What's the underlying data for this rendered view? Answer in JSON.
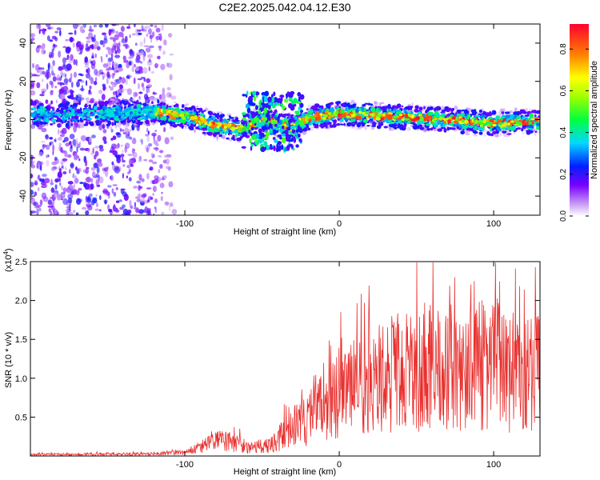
{
  "title": "C2E2.2025.042.04.12.E30",
  "chart_data": [
    {
      "type": "heatmap",
      "xlabel": "Height of straight line (km)",
      "ylabel": "Frequency (Hz)",
      "xlim": [
        -200,
        130
      ],
      "ylim": [
        -50,
        50
      ],
      "x_ticks": [
        -100,
        0,
        100
      ],
      "y_ticks": [
        -40,
        -20,
        0,
        20,
        40
      ],
      "colorbar": {
        "label": "Normalized spectral amplitude",
        "range": [
          0,
          0.92
        ],
        "ticks": [
          "0.0",
          "0.2",
          "0.4",
          "0.6",
          "0.8"
        ],
        "colormap": "rainbow (white-purple-blue-cyan-green-yellow-red)"
      },
      "ridge": [
        {
          "x": -200,
          "f": 3
        },
        {
          "x": -150,
          "f": 3
        },
        {
          "x": -120,
          "f": 4
        },
        {
          "x": -100,
          "f": 2
        },
        {
          "x": -80,
          "f": -3
        },
        {
          "x": -65,
          "f": -5
        },
        {
          "x": -50,
          "f": 0
        },
        {
          "x": -30,
          "f": -4
        },
        {
          "x": -20,
          "f": 1
        },
        {
          "x": 0,
          "f": 3
        },
        {
          "x": 50,
          "f": 1
        },
        {
          "x": 100,
          "f": -2
        },
        {
          "x": 130,
          "f": -1
        }
      ]
    },
    {
      "type": "line",
      "xlabel": "Height of straight line (km)",
      "ylabel": "SNR (10 * v/v)",
      "yscale_label": "(x10",
      "yscale_exponent": "4",
      "xlim": [
        -200,
        130
      ],
      "ylim": [
        0,
        2.5
      ],
      "x_ticks": [
        -100,
        0,
        100
      ],
      "y_ticks": [
        0.5,
        1.0,
        1.5,
        2.0,
        2.5
      ],
      "color": "#e8302e",
      "envelope": [
        {
          "x": -200,
          "y": 0.02
        },
        {
          "x": -120,
          "y": 0.03
        },
        {
          "x": -100,
          "y": 0.05
        },
        {
          "x": -90,
          "y": 0.12
        },
        {
          "x": -80,
          "y": 0.2
        },
        {
          "x": -70,
          "y": 0.22
        },
        {
          "x": -60,
          "y": 0.12
        },
        {
          "x": -45,
          "y": 0.15
        },
        {
          "x": -30,
          "y": 0.4
        },
        {
          "x": -15,
          "y": 0.6
        },
        {
          "x": 0,
          "y": 0.85
        },
        {
          "x": 20,
          "y": 1.05
        },
        {
          "x": 40,
          "y": 1.2
        },
        {
          "x": 60,
          "y": 1.25
        },
        {
          "x": 80,
          "y": 1.2
        },
        {
          "x": 100,
          "y": 1.3
        },
        {
          "x": 115,
          "y": 1.1
        },
        {
          "x": 130,
          "y": 1.2
        }
      ]
    }
  ]
}
